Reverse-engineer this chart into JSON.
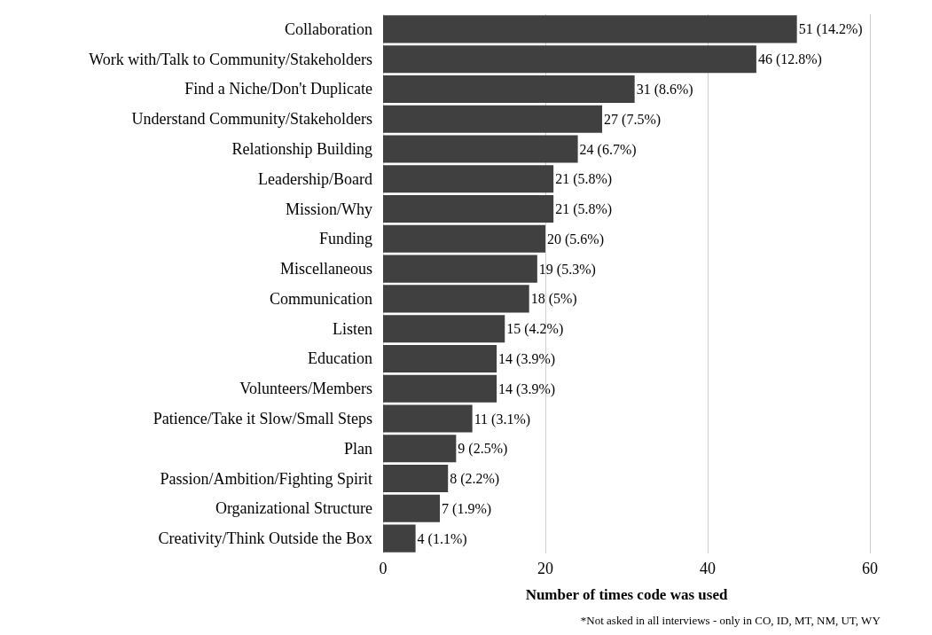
{
  "chart_data": {
    "type": "bar",
    "orientation": "horizontal",
    "xlabel": "Number of times code was used",
    "annotations": [
      "*Not asked in all interviews - only in CO, ID, MT, NM, UT, WY"
    ],
    "categories": [
      "Collaboration",
      "Work with/Talk to Community/Stakeholders",
      "Find a Niche/Don't Duplicate",
      "Understand Community/Stakeholders",
      "Relationship Building",
      "Leadership/Board",
      "Mission/Why",
      "Funding",
      "Miscellaneous",
      "Communication",
      "Listen",
      "Education",
      "Volunteers/Members",
      "Patience/Take it Slow/Small Steps",
      "Plan",
      "Passion/Ambition/Fighting Spirit",
      "Organizational Structure",
      "Creativity/Think Outside the Box"
    ],
    "values": [
      51,
      46,
      31,
      27,
      24,
      21,
      21,
      20,
      19,
      18,
      15,
      14,
      14,
      11,
      9,
      8,
      7,
      4
    ],
    "value_labels": [
      "51 (14.2%)",
      "46 (12.8%)",
      "31 (8.6%)",
      "27 (7.5%)",
      "24 (6.7%)",
      "21 (5.8%)",
      "21 (5.8%)",
      "20 (5.6%)",
      "19 (5.3%)",
      "18 (5%)",
      "15 (4.2%)",
      "14 (3.9%)",
      "14 (3.9%)",
      "11 (3.1%)",
      "9 (2.5%)",
      "8 (2.2%)",
      "7 (1.9%)",
      "4 (1.1%)"
    ],
    "color": "#404040",
    "xlim": [
      0,
      60
    ],
    "xticks": [
      0,
      20,
      40,
      60
    ],
    "grid": "x"
  }
}
